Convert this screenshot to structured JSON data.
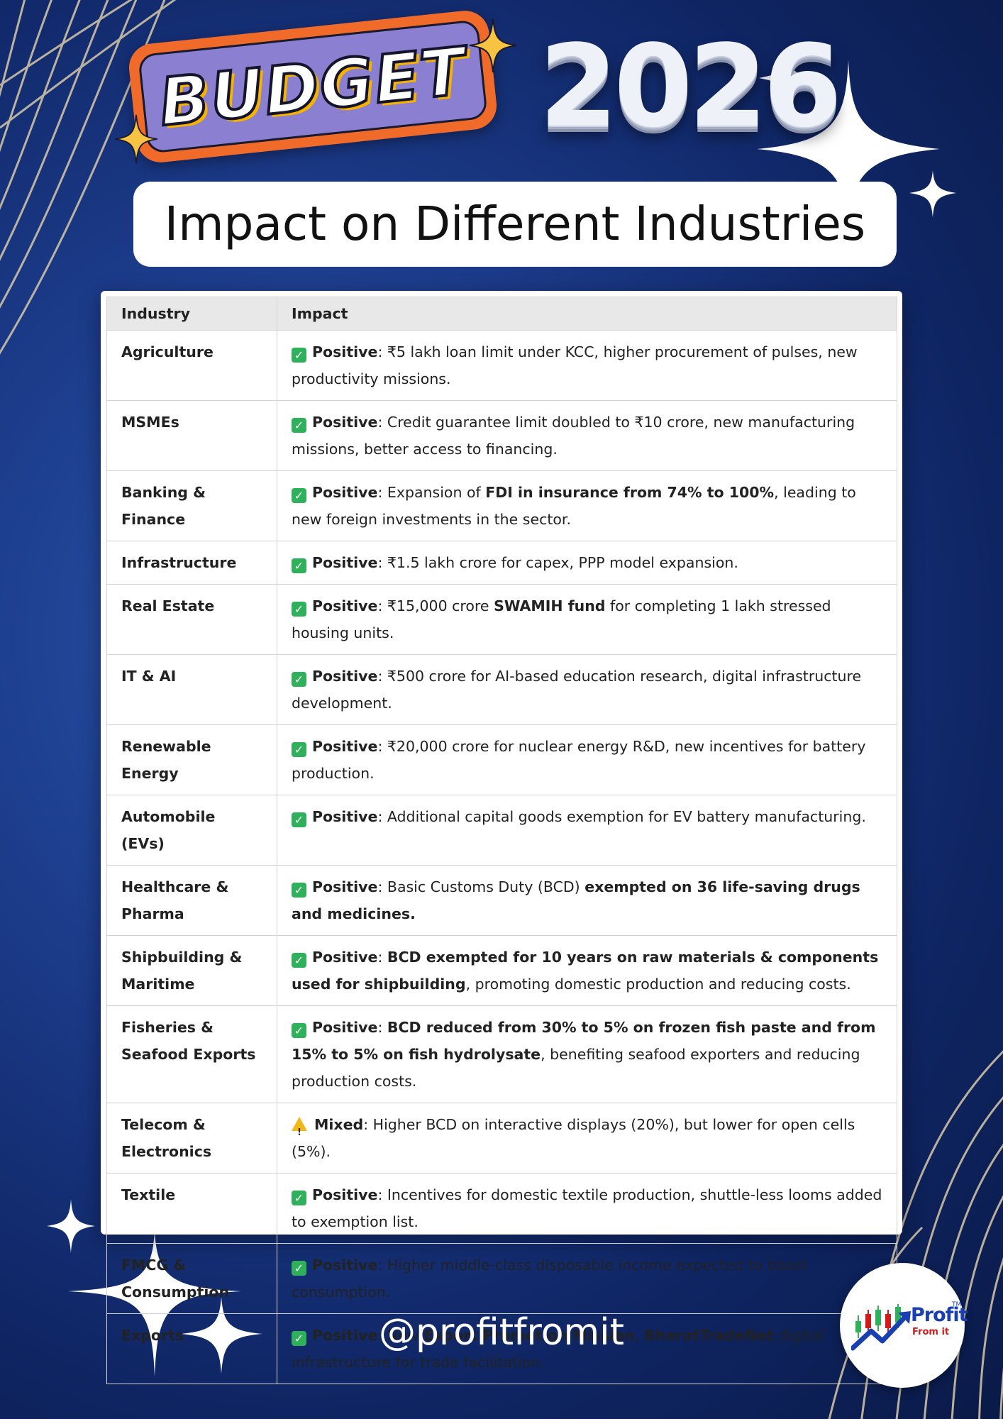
{
  "header": {
    "badge_text": "BUDGET",
    "year": "2026",
    "subtitle": "Impact on Different Industries"
  },
  "table": {
    "headers": [
      "Industry",
      "Impact"
    ],
    "rows": [
      {
        "industry": "Agriculture",
        "status": "Positive",
        "segments": [
          {
            "t": "₹5 lakh loan limit under KCC, higher procurement of pulses, new productivity missions."
          }
        ]
      },
      {
        "industry": "MSMEs",
        "status": "Positive",
        "segments": [
          {
            "t": "Credit guarantee limit doubled to ₹10 crore, new manufacturing missions, better access to financing."
          }
        ]
      },
      {
        "industry": "Banking & Finance",
        "status": "Positive",
        "segments": [
          {
            "t": "Expansion of "
          },
          {
            "t": "FDI in insurance from 74% to 100%",
            "b": true
          },
          {
            "t": ", leading to new foreign investments in the sector."
          }
        ]
      },
      {
        "industry": "Infrastructure",
        "status": "Positive",
        "segments": [
          {
            "t": "₹1.5 lakh crore for capex, PPP model expansion."
          }
        ]
      },
      {
        "industry": "Real Estate",
        "status": "Positive",
        "segments": [
          {
            "t": "₹15,000 crore "
          },
          {
            "t": "SWAMIH fund",
            "b": true
          },
          {
            "t": " for completing 1 lakh stressed housing units."
          }
        ]
      },
      {
        "industry": "IT & AI",
        "status": "Positive",
        "segments": [
          {
            "t": "₹500 crore for AI-based education research, digital infrastructure development."
          }
        ]
      },
      {
        "industry": "Renewable Energy",
        "status": "Positive",
        "segments": [
          {
            "t": "₹20,000 crore for nuclear energy R&D, new incentives for battery production."
          }
        ]
      },
      {
        "industry": "Automobile (EVs)",
        "status": "Positive",
        "segments": [
          {
            "t": "Additional capital goods exemption for EV battery manufacturing."
          }
        ]
      },
      {
        "industry": "Healthcare & Pharma",
        "status": "Positive",
        "segments": [
          {
            "t": "Basic Customs Duty (BCD) "
          },
          {
            "t": "exempted on 36 life-saving drugs and medicines.",
            "b": true
          }
        ]
      },
      {
        "industry": "Shipbuilding & Maritime",
        "status": "Positive",
        "segments": [
          {
            "t": "BCD exempted for 10 years on raw materials & components used for shipbuilding",
            "b": true
          },
          {
            "t": ", promoting domestic production and reducing costs."
          }
        ]
      },
      {
        "industry": "Fisheries & Seafood Exports",
        "status": "Positive",
        "segments": [
          {
            "t": "BCD reduced from 30% to 5% on frozen fish paste and from 15% to 5% on fish hydrolysate",
            "b": true
          },
          {
            "t": ", benefiting seafood exporters and reducing production costs."
          }
        ]
      },
      {
        "industry": "Telecom & Electronics",
        "status": "Mixed",
        "segments": [
          {
            "t": "Higher BCD on interactive displays (20%), but lower for open cells (5%)."
          }
        ]
      },
      {
        "industry": "Textile",
        "status": "Positive",
        "segments": [
          {
            "t": "Incentives for domestic textile production, shuttle-less looms added to exemption list."
          }
        ]
      },
      {
        "industry": "FMCG & Consumption",
        "status": "Positive",
        "segments": [
          {
            "t": "Higher middle-class disposable income expected to boost consumption."
          }
        ]
      },
      {
        "industry": "Exports",
        "status": "Positive",
        "segments": [
          {
            "t": "New "
          },
          {
            "t": "Export Promotion Mission",
            "b": true
          },
          {
            "t": ", "
          },
          {
            "t": "BharatTradeNet",
            "b": true
          },
          {
            "t": " digital infrastructure for trade facilitation."
          }
        ]
      }
    ]
  },
  "footer": {
    "handle": "@profitfromit",
    "logo_text": "Profit",
    "logo_subtext": "From it",
    "logo_tm": "TM"
  },
  "colors": {
    "background": "#1b3a88",
    "badge_orange": "#f06a2a",
    "badge_purple": "#8a7fd0",
    "positive_green": "#2fb15c",
    "mixed_yellow": "#f1b81b"
  },
  "icons": {
    "positive": "green-check-icon",
    "mixed": "warning-icon"
  }
}
